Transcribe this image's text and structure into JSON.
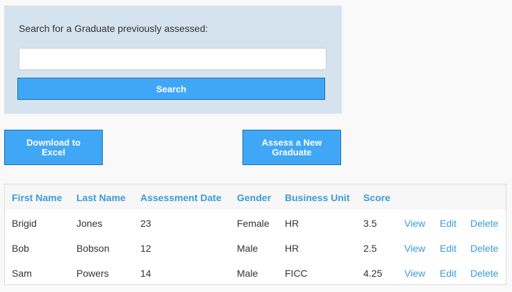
{
  "search": {
    "label": "Search for a Graduate previously assessed:",
    "input_value": "",
    "placeholder": "",
    "button_label": "Search"
  },
  "actions": {
    "download_label": "Download to Excel",
    "assess_label": "Assess a New Graduate"
  },
  "table": {
    "headers": [
      "First Name",
      "Last Name",
      "Assessment Date",
      "Gender",
      "Business Unit",
      "Score"
    ],
    "rows": [
      {
        "first": "Brigid",
        "last": "Jones",
        "date": "23",
        "gender": "Female",
        "unit": "HR",
        "score": "3.5",
        "view": "View",
        "edit": "Edit",
        "delete": "Delete"
      },
      {
        "first": "Bob",
        "last": "Bobson",
        "date": "12",
        "gender": "Male",
        "unit": "HR",
        "score": "2.5",
        "view": "View",
        "edit": "Edit",
        "delete": "Delete"
      },
      {
        "first": "Sam",
        "last": "Powers",
        "date": "14",
        "gender": "Male",
        "unit": "FICC",
        "score": "4.25",
        "view": "View",
        "edit": "Edit",
        "delete": "Delete"
      }
    ]
  },
  "colors": {
    "panel_background": "#d5e3ef",
    "button_blue": "#3fa7f5",
    "link_blue": "#3a9ad9"
  }
}
